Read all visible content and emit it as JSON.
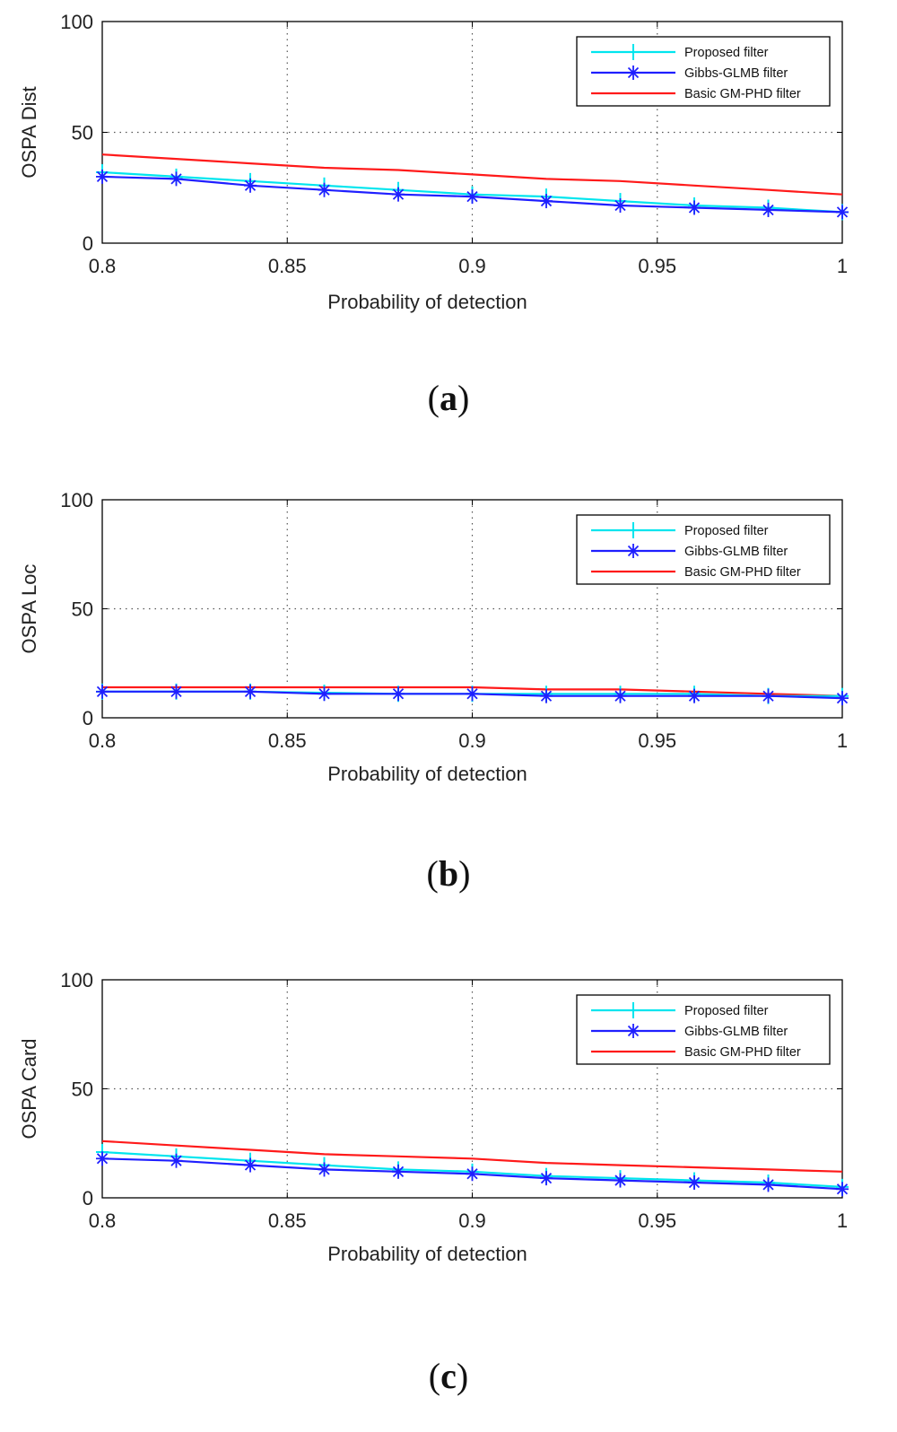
{
  "chart_data": [
    {
      "type": "line",
      "panel_label": "a",
      "ylabel": "OSPA Dist",
      "xlabel": "Probability of detection",
      "xlim": [
        0.8,
        1.0
      ],
      "ylim": [
        0,
        100
      ],
      "xticks": [
        "0.8",
        "0.85",
        "0.9",
        "0.95",
        "1"
      ],
      "yticks": [
        "0",
        "50",
        "100"
      ],
      "grid": true,
      "legend_position": "top-right",
      "x": [
        0.8,
        0.82,
        0.84,
        0.86,
        0.88,
        0.9,
        0.92,
        0.94,
        0.96,
        0.98,
        1.0
      ],
      "series": [
        {
          "name": "Proposed filter",
          "color": "#00e5ee",
          "marker": "plus",
          "values": [
            32,
            30,
            28,
            26,
            24,
            22,
            21,
            19,
            17,
            16,
            14
          ]
        },
        {
          "name": "Gibbs-GLMB filter",
          "color": "#1f1fff",
          "marker": "star",
          "values": [
            30,
            29,
            26,
            24,
            22,
            21,
            19,
            17,
            16,
            15,
            14
          ]
        },
        {
          "name": "Basic GM-PHD filter",
          "color": "#ff1a1a",
          "marker": "none",
          "values": [
            40,
            38,
            36,
            34,
            33,
            31,
            29,
            28,
            26,
            24,
            22
          ]
        }
      ]
    },
    {
      "type": "line",
      "panel_label": "b",
      "ylabel": "OSPA Loc",
      "xlabel": "Probability of detection",
      "xlim": [
        0.8,
        1.0
      ],
      "ylim": [
        0,
        100
      ],
      "xticks": [
        "0.8",
        "0.85",
        "0.9",
        "0.95",
        "1"
      ],
      "yticks": [
        "0",
        "50",
        "100"
      ],
      "grid": true,
      "legend_position": "top-right",
      "x": [
        0.8,
        0.82,
        0.84,
        0.86,
        0.88,
        0.9,
        0.92,
        0.94,
        0.96,
        0.98,
        1.0
      ],
      "series": [
        {
          "name": "Proposed filter",
          "color": "#00e5ee",
          "marker": "plus",
          "values": [
            12,
            12,
            12,
            11.5,
            11,
            11,
            11,
            11,
            11,
            10,
            10
          ]
        },
        {
          "name": "Gibbs-GLMB filter",
          "color": "#1f1fff",
          "marker": "star",
          "values": [
            12,
            12,
            12,
            11,
            11,
            11,
            10,
            10,
            10,
            10,
            9
          ]
        },
        {
          "name": "Basic GM-PHD filter",
          "color": "#ff1a1a",
          "marker": "none",
          "values": [
            14,
            14,
            14,
            14,
            14,
            14,
            13,
            13,
            12,
            11,
            10
          ]
        }
      ]
    },
    {
      "type": "line",
      "panel_label": "c",
      "ylabel": "OSPA Card",
      "xlabel": "Probability of detection",
      "xlim": [
        0.8,
        1.0
      ],
      "ylim": [
        0,
        100
      ],
      "xticks": [
        "0.8",
        "0.85",
        "0.9",
        "0.95",
        "1"
      ],
      "yticks": [
        "0",
        "50",
        "100"
      ],
      "grid": true,
      "legend_position": "top-right",
      "x": [
        0.8,
        0.82,
        0.84,
        0.86,
        0.88,
        0.9,
        0.92,
        0.94,
        0.96,
        0.98,
        1.0
      ],
      "series": [
        {
          "name": "Proposed filter",
          "color": "#00e5ee",
          "marker": "plus",
          "values": [
            21,
            19,
            17,
            15,
            13,
            12,
            10,
            9,
            8,
            7,
            5
          ]
        },
        {
          "name": "Gibbs-GLMB filter",
          "color": "#1f1fff",
          "marker": "star",
          "values": [
            18,
            17,
            15,
            13,
            12,
            11,
            9,
            8,
            7,
            6,
            4
          ]
        },
        {
          "name": "Basic GM-PHD filter",
          "color": "#ff1a1a",
          "marker": "none",
          "values": [
            26,
            24,
            22,
            20,
            19,
            18,
            16,
            15,
            14,
            13,
            12
          ]
        }
      ]
    }
  ]
}
